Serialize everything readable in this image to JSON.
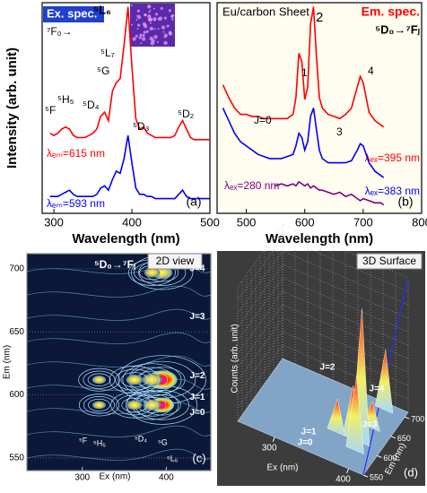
{
  "chart_data": [
    {
      "type": "line",
      "panel": "(a)",
      "xlabel": "Wavelength (nm)",
      "ylabel": "Intensity (arb. unit)",
      "annotations": [
        "Ex. spec.",
        "⁷F₀→",
        "⁵L₆",
        "⁵L₇",
        "⁵G",
        "⁵D₄",
        "⁵H₅",
        "⁵F",
        "⁵D₃",
        "⁵D₂"
      ],
      "xlim": [
        285,
        500
      ],
      "xticks": [
        300,
        400,
        500
      ],
      "ylim": [
        0,
        100
      ],
      "x": [
        295,
        300,
        305,
        310,
        315,
        320,
        325,
        330,
        335,
        340,
        345,
        350,
        355,
        360,
        365,
        370,
        375,
        380,
        385,
        390,
        395,
        400,
        405,
        410,
        415,
        420,
        425,
        430,
        435,
        440,
        445,
        450,
        455,
        460,
        465,
        470,
        475,
        480,
        485,
        490,
        495,
        500
      ],
      "series": [
        {
          "name": "λₑₘ=615 nm",
          "color": "#ff0000",
          "values": [
            38,
            37,
            38,
            40,
            41,
            40,
            37,
            36,
            36,
            36,
            37,
            38,
            40,
            46,
            48,
            44,
            58,
            62,
            64,
            80,
            98,
            70,
            45,
            40,
            41,
            38,
            37,
            36,
            36,
            36,
            36,
            36,
            37,
            41,
            44,
            40,
            36,
            35,
            35,
            35,
            35,
            35
          ]
        },
        {
          "name": "λₑₘ=593 nm",
          "color": "#0000ff",
          "values": [
            8,
            8,
            8,
            9,
            10,
            11,
            9,
            8,
            8,
            8,
            8,
            8,
            9,
            12,
            13,
            11,
            16,
            20,
            19,
            26,
            37,
            24,
            12,
            9,
            9,
            8,
            8,
            7,
            7,
            7,
            7,
            7,
            7,
            9,
            11,
            8,
            7,
            7,
            7,
            7,
            7,
            7
          ]
        }
      ]
    },
    {
      "type": "line",
      "panel": "(b)",
      "xlabel": "Wavelength (nm)",
      "annotations": [
        "Eu/carbon Sheet",
        "Em. spec.",
        "⁵D₀→⁷Fⱼ",
        "J=0",
        "1",
        "2",
        "3",
        "4"
      ],
      "xlim": [
        450,
        800
      ],
      "xticks": [
        500,
        600,
        700,
        800
      ],
      "ylim": [
        0,
        100
      ],
      "x": [
        460,
        470,
        480,
        490,
        500,
        510,
        520,
        530,
        540,
        550,
        560,
        570,
        580,
        585,
        590,
        595,
        600,
        605,
        610,
        615,
        620,
        625,
        630,
        640,
        650,
        660,
        670,
        680,
        690,
        695,
        700,
        710,
        720,
        730,
        735
      ],
      "series": [
        {
          "name": "λₑₓ=395 nm",
          "color": "#ff0000",
          "values": [
            61,
            55,
            50,
            47,
            47,
            46,
            46,
            45,
            45,
            45,
            45,
            45,
            47,
            55,
            76,
            72,
            54,
            60,
            90,
            98,
            75,
            55,
            50,
            47,
            46,
            45,
            47,
            50,
            60,
            65,
            62,
            48,
            44,
            42,
            41
          ]
        },
        {
          "name": "λₑₓ=383 nm",
          "color": "#0000ff",
          "values": [
            50,
            44,
            38,
            34,
            32,
            30,
            28,
            27,
            26,
            26,
            26,
            27,
            28,
            32,
            38,
            36,
            30,
            34,
            46,
            50,
            40,
            30,
            26,
            24,
            24,
            24,
            24,
            25,
            30,
            33,
            32,
            24,
            20,
            18,
            17
          ]
        },
        {
          "name": "λₑₓ=280 nm",
          "color": "#800080",
          "values": [
            null,
            null,
            null,
            null,
            null,
            null,
            null,
            null,
            null,
            13,
            14,
            13,
            14,
            13,
            15,
            14,
            13,
            14,
            12,
            13,
            12,
            11,
            11,
            10,
            9,
            10,
            8,
            9,
            7,
            6,
            7,
            6,
            5,
            5,
            4
          ]
        }
      ]
    },
    {
      "type": "contour",
      "panel": "(c)",
      "xlabel": "Ex (nm)",
      "ylabel": "Em (nm)",
      "annotations": [
        "⁵D₀→⁷Fⱼ",
        "2D view",
        "J=4",
        "J=3",
        "J=2",
        "J=1",
        "J=0",
        "⁵F",
        "⁵H₅",
        "⁵D₄",
        "⁵G",
        "⁵L₆"
      ],
      "xlim": [
        234,
        453
      ],
      "xticks": [
        300,
        400
      ],
      "ylim": [
        540,
        712
      ],
      "yticks": [
        550,
        600,
        650,
        700
      ],
      "x": [
        395,
        395,
        395,
        383,
        383,
        362,
        362,
        320,
        320,
        383
      ],
      "y": [
        612,
        592,
        697,
        612,
        592,
        612,
        592,
        612,
        592,
        697
      ],
      "values": [
        100,
        70,
        55,
        50,
        40,
        35,
        30,
        20,
        18,
        30
      ]
    },
    {
      "type": "surface",
      "panel": "(d)",
      "xlabel": "Ex (nm)",
      "ylabel": "Em (nm)",
      "zlabel": "Counts (arb. unit)",
      "annotations": [
        "3D Surface",
        "J=2",
        "J=4",
        "J=3",
        "J=1",
        "J=0"
      ],
      "xlim": [
        250,
        420
      ],
      "xticks": [
        300,
        400
      ],
      "ylim": [
        550,
        712
      ],
      "yticks": [
        550,
        600,
        650,
        700
      ],
      "zlim": [
        0,
        100
      ],
      "x": [
        395,
        395,
        395,
        383,
        362,
        395
      ],
      "y": [
        612,
        592,
        697,
        612,
        612,
        650
      ],
      "values": [
        100,
        55,
        45,
        40,
        25,
        20
      ]
    }
  ]
}
